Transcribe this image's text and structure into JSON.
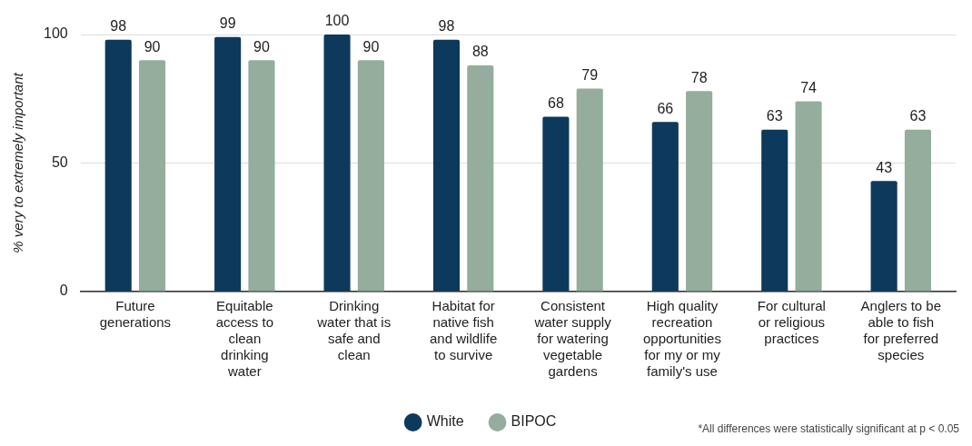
{
  "chart_data": {
    "type": "bar",
    "ylabel": "% very to extremely important",
    "categories": [
      "Future generations",
      "Equitable access to clean drinking water",
      "Drinking water that is safe and clean",
      "Habitat for native fish and wildlife to survive",
      "Consistent water supply for watering vegetable gardens",
      "High quality recreation opportunities for my or my family's use",
      "For cultural or religious practices",
      "Anglers to be able to fish for preferred species"
    ],
    "series": [
      {
        "name": "White",
        "color": "#0d3a5c",
        "values": [
          98,
          99,
          100,
          98,
          68,
          66,
          63,
          43
        ]
      },
      {
        "name": "BIPOC",
        "color": "#94ad9c",
        "values": [
          90,
          90,
          90,
          88,
          79,
          78,
          74,
          63
        ]
      }
    ],
    "ylim": [
      0,
      100
    ],
    "yticks": [
      0,
      50,
      100
    ],
    "grid": "y",
    "legend": "bottom",
    "data_labels": true,
    "annotations": [
      "*All differences were statistically significant at p < 0.05"
    ]
  }
}
